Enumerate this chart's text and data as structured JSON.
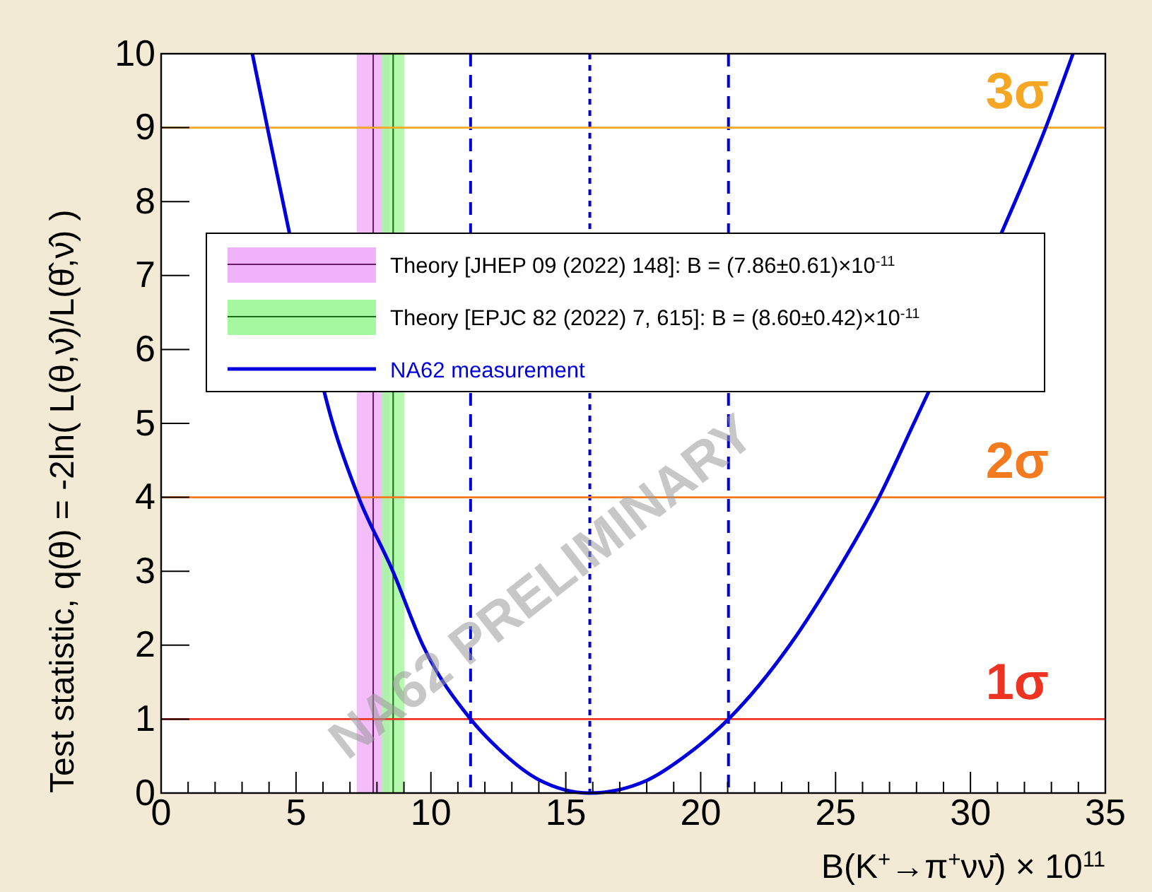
{
  "chart_data": {
    "type": "line",
    "xlabel": "B(K$^{+}$→π$^{+}$νν̄) × 10$^{11}$",
    "ylabel": "Test statistic, q(θ) = -2ln( L(θ,ν̂̂)/L(θ̂,ν̂) )",
    "xlim": [
      0,
      35
    ],
    "ylim": [
      0,
      10
    ],
    "xticks": [
      0,
      {
        "value": 1,
        "label": null
      },
      {
        "value": 2,
        "label": null
      },
      {
        "value": 3,
        "label": null
      },
      {
        "value": 4,
        "label": null
      },
      5,
      {
        "value": 6,
        "label": null
      },
      {
        "value": 7,
        "label": null
      },
      {
        "value": 8,
        "label": null
      },
      {
        "value": 9,
        "label": null
      },
      10,
      {
        "value": 11,
        "label": null
      },
      {
        "value": 12,
        "label": null
      },
      {
        "value": 13,
        "label": null
      },
      {
        "value": 14,
        "label": null
      },
      15,
      {
        "value": 16,
        "label": null
      },
      {
        "value": 17,
        "label": null
      },
      {
        "value": 18,
        "label": null
      },
      {
        "value": 19,
        "label": null
      },
      20,
      {
        "value": 21,
        "label": null
      },
      {
        "value": 22,
        "label": null
      },
      {
        "value": 23,
        "label": null
      },
      {
        "value": 24,
        "label": null
      },
      25,
      {
        "value": 26,
        "label": null
      },
      {
        "value": 27,
        "label": null
      },
      {
        "value": 28,
        "label": null
      },
      {
        "value": 29,
        "label": null
      },
      30,
      {
        "value": 31,
        "label": null
      },
      {
        "value": 32,
        "label": null
      },
      {
        "value": 33,
        "label": null
      },
      {
        "value": 34,
        "label": null
      },
      35
    ],
    "yticks": [
      0,
      1,
      2,
      3,
      4,
      5,
      6,
      7,
      8,
      9,
      10
    ],
    "grid": false,
    "legend": "top",
    "marker": "none",
    "series": [
      {
        "name": "NA62 measurement",
        "color": "#0000dd",
        "line_style": "solid",
        "x": [
          3.38,
          3.94,
          4.74,
          6.36,
          7.32,
          8.59,
          9.7,
          11.47,
          12.5,
          14,
          15.89,
          18,
          19.5,
          21.03,
          23.3,
          25.06,
          26.61,
          27.9,
          31.18,
          32.79,
          33.8
        ],
        "values": [
          10,
          9,
          7.6,
          5,
          4,
          3,
          2,
          1,
          0.6,
          0.18,
          0,
          0.17,
          0.52,
          1,
          2,
          3,
          4,
          5,
          7.6,
          9,
          10
        ]
      }
    ],
    "bands": [
      {
        "axis": "x",
        "from": 7.25,
        "to": 8.47,
        "color": "#f0b2f8",
        "label": "Theory [JHEP 09 (2022) 148]: B = (7.86±0.61)×10$^{-11}$"
      },
      {
        "axis": "x",
        "from": 8.18,
        "to": 9.02,
        "color": "#a6f8a0",
        "label": "Theory [EPJC 82 (2022) 7, 615]: B = (8.60±0.42)×10$^{-11}$"
      }
    ],
    "ref_lines": [
      {
        "axis": "x",
        "value": 7.86,
        "color": "#6a1a6a",
        "line_style": "solid"
      },
      {
        "axis": "x",
        "value": 8.6,
        "color": "#1a6a1a",
        "line_style": "solid"
      },
      {
        "axis": "x",
        "value": 11.47,
        "color": "#0000dd",
        "line_style": "dashed"
      },
      {
        "axis": "x",
        "value": 15.89,
        "color": "#0000dd",
        "line_style": "dotted"
      },
      {
        "axis": "x",
        "value": 21.03,
        "color": "#0000dd",
        "line_style": "dashed"
      },
      {
        "axis": "y",
        "value": 1,
        "color": "#ee3322",
        "label": "1σ"
      },
      {
        "axis": "y",
        "value": 4,
        "color": "#f37a1e",
        "label": "2σ"
      },
      {
        "axis": "y",
        "value": 9,
        "color": "#f5a623",
        "label": "3σ"
      }
    ],
    "annotations": [
      "NA62 PRELIMINARY"
    ]
  }
}
